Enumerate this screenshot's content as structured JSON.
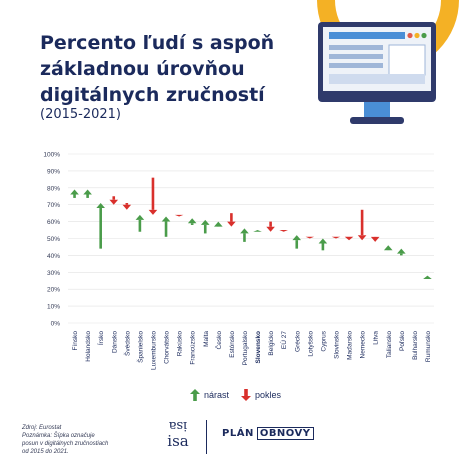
{
  "header": {
    "title_lines": [
      "Percento ľudí s aspoň",
      "základnou úrovňou",
      "digitálnych zručností"
    ],
    "subtitle": "(2015-2021)"
  },
  "colors": {
    "title": "#1b2a5c",
    "increase": "#4a9c4a",
    "decrease": "#d9302c",
    "accent": "#f4b125",
    "monitor_frame": "#2f3a6b",
    "monitor_screen": "#eef2f8",
    "monitor_stand": "#4a8ed6",
    "grid": "#e2e2e2"
  },
  "chart_data": {
    "type": "bar",
    "title": "",
    "xlabel": "",
    "ylabel": "",
    "ylim": [
      0,
      100
    ],
    "y_ticks": [
      "0%",
      "10%",
      "20%",
      "30%",
      "40%",
      "50%",
      "60%",
      "70%",
      "80%",
      "90%",
      "100%"
    ],
    "grid": true,
    "legend_position": "bottom-center",
    "highlight_category": "Slovensko",
    "series_names": [
      "2015",
      "2021"
    ],
    "categories": [
      "Fínsko",
      "Holandsko",
      "Írsko",
      "Dánsko",
      "Švédsko",
      "Španielsko",
      "Luxembursko",
      "Chorvátsko",
      "Rakúsko",
      "Francúzsko",
      "Malta",
      "Česko",
      "Estónsko",
      "Portugalsko",
      "Slovensko",
      "Belgicko",
      "EÚ 27",
      "Grécko",
      "Lotyšsko",
      "Cyprus",
      "Slovinsko",
      "Maďarsko",
      "Nemecko",
      "Litva",
      "Taliansko",
      "Poľsko",
      "Bulharsko",
      "Rumunsko"
    ],
    "start_values": [
      74,
      74,
      44,
      75,
      71,
      54,
      86,
      51,
      64,
      58,
      53,
      57,
      65,
      48,
      54,
      60,
      55,
      44,
      51,
      43,
      51,
      51,
      67,
      51,
      43,
      40,
      31,
      26
    ],
    "end_values": [
      79,
      79,
      71,
      70,
      67,
      64,
      64,
      63,
      63,
      62,
      61,
      60,
      57,
      56,
      55,
      54,
      54,
      52,
      50,
      50,
      50,
      49,
      49,
      48,
      46,
      44,
      31,
      28
    ]
  },
  "legend": {
    "increase_label": "nárast",
    "decrease_label": "pokles"
  },
  "source_note": {
    "lines": [
      "Zdroj: Eurostat",
      "Poznámka: Šípka označuje",
      "posun v digitálnych zručnostiach",
      "od 2015 do 2021."
    ]
  },
  "logos": {
    "isa_text": "isa",
    "plan_text": "PLÁN",
    "obnovy_text": "OBNOVY"
  }
}
